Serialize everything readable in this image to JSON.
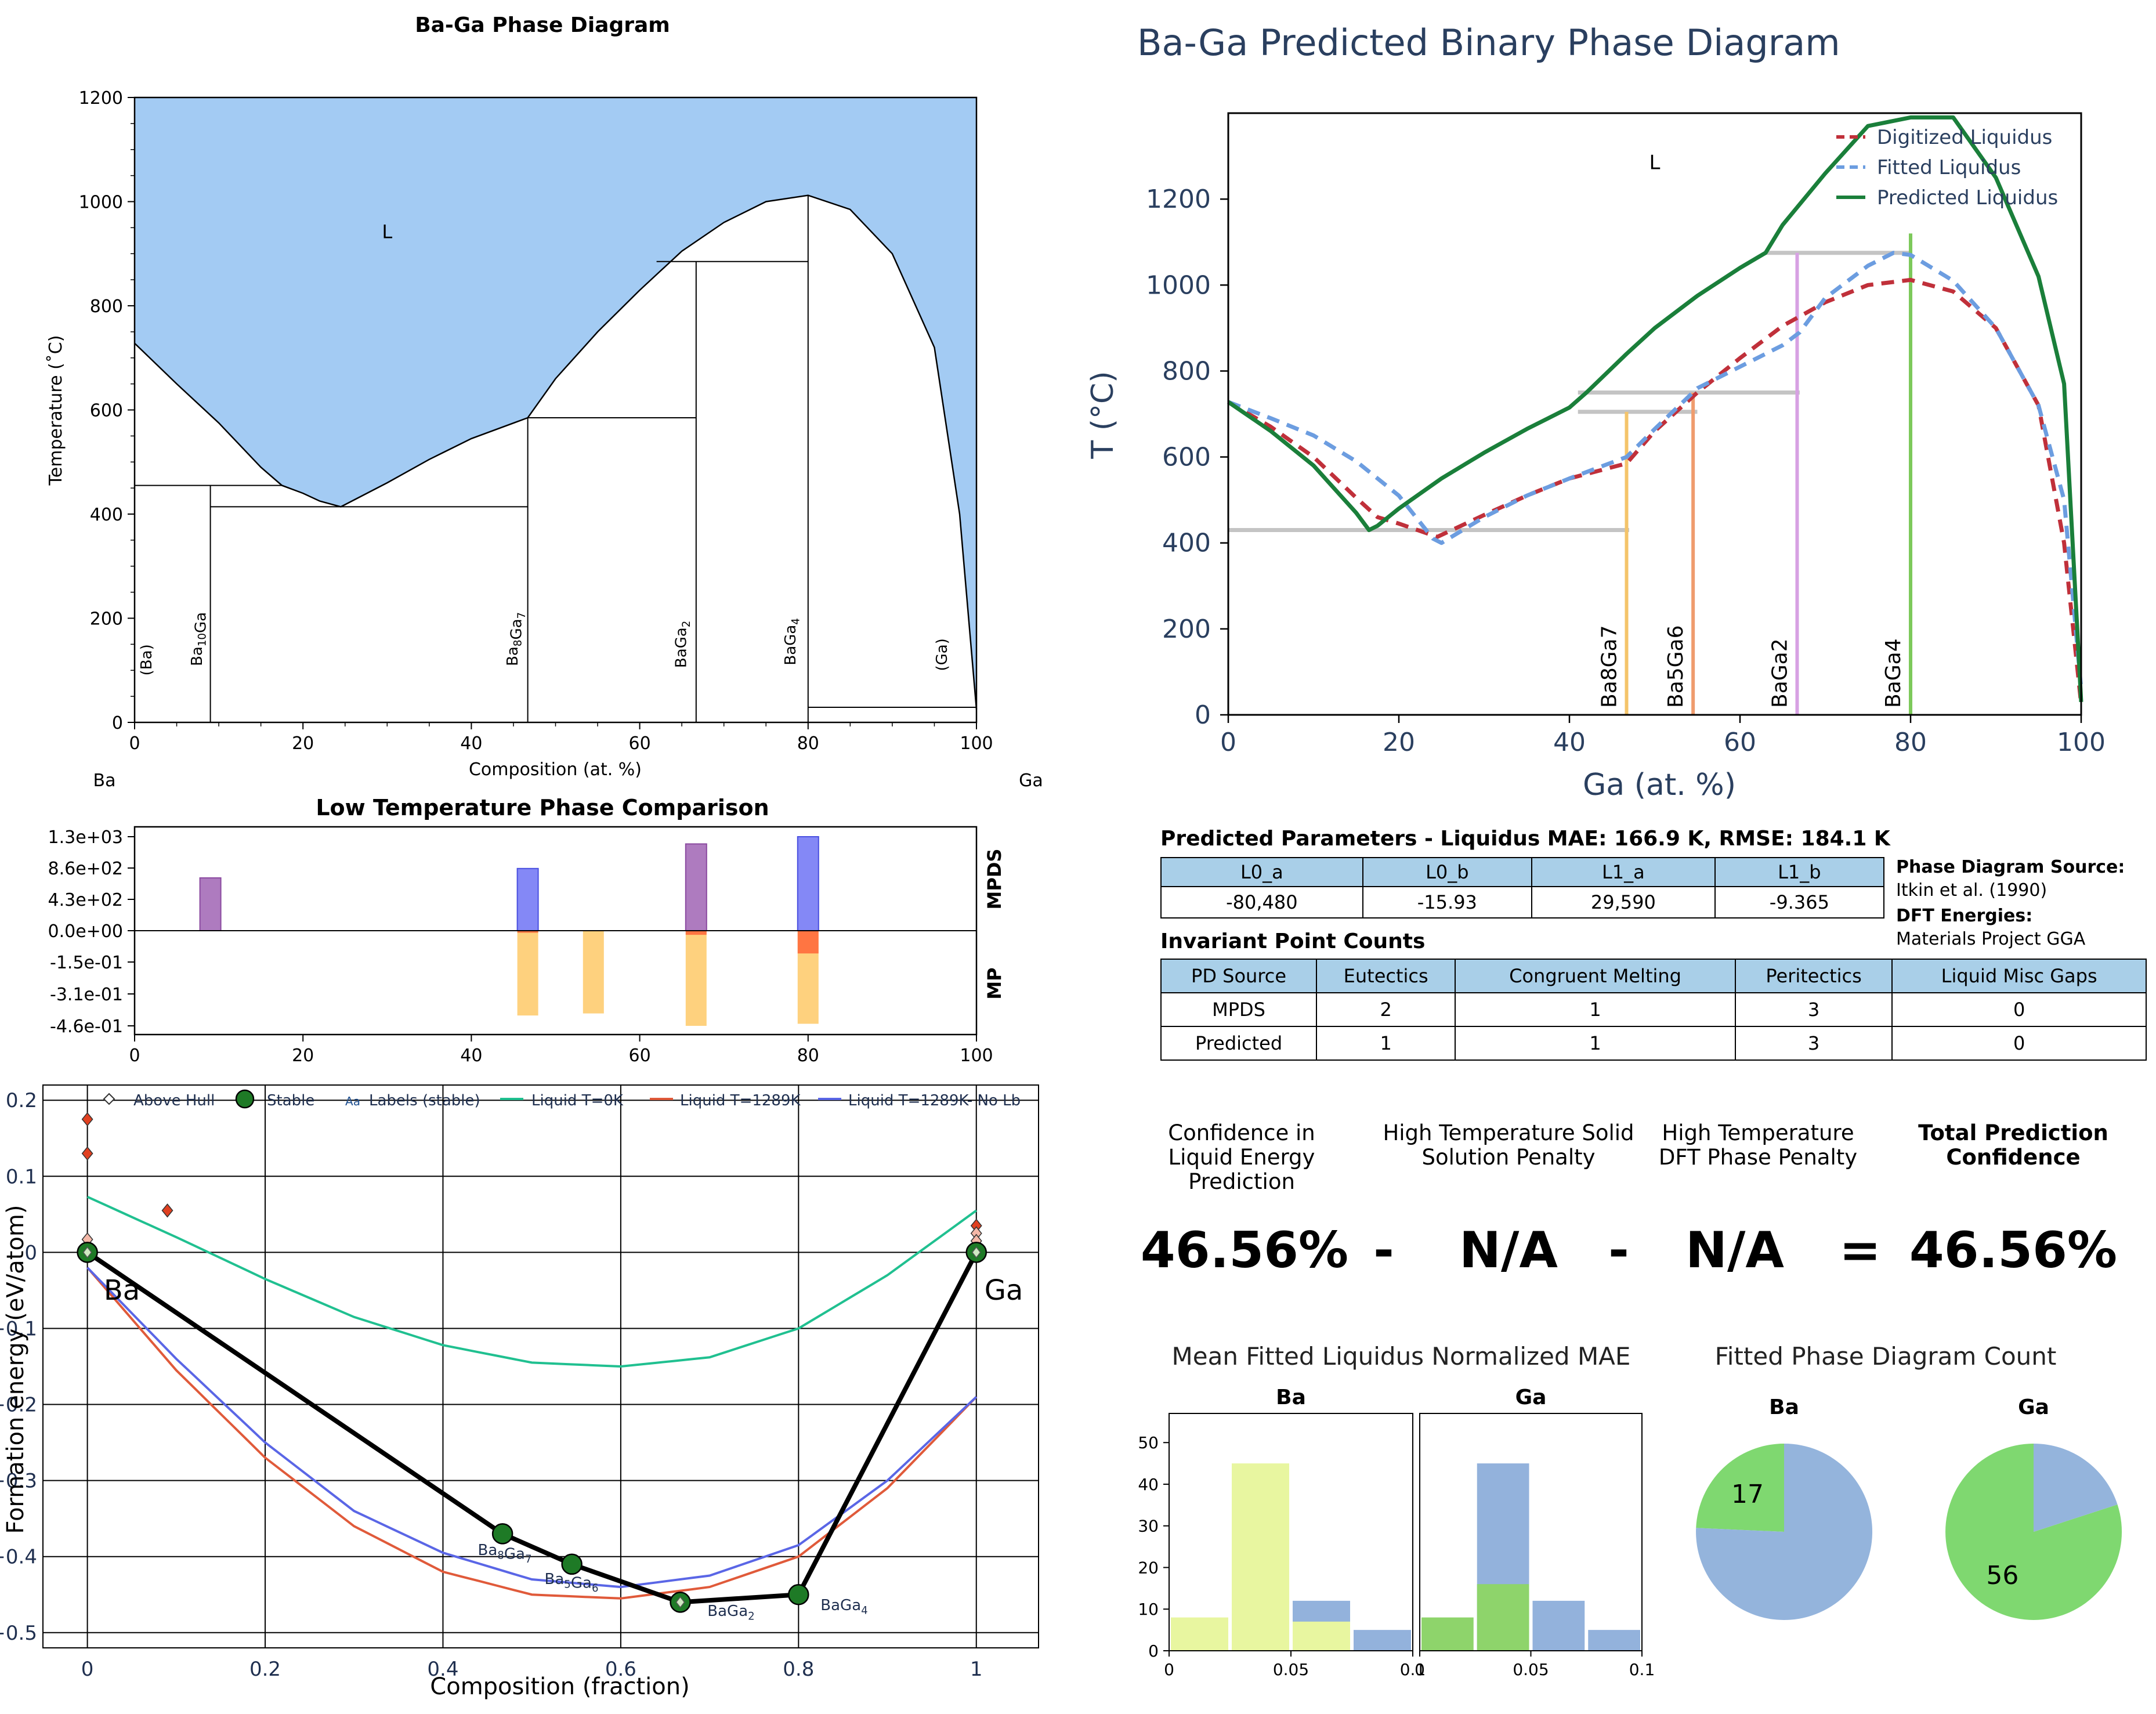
{
  "colors": {
    "liquid": "#a3cbf3",
    "mpds_purple": "#a064b4",
    "mpds_blue": "#6e73f5",
    "mp_orange": "#ff6a3c",
    "mp_yellow": "#fec55e",
    "dig": "#c0303a",
    "fit": "#6c9de0",
    "pred": "#1a7f3a",
    "hull": "#000000",
    "liq0": "#20c090",
    "liq1": "#e05a3a",
    "liq2": "#5a66e6",
    "hist_yellow": "#e8f6a0",
    "hist_blue": "#93b2dc",
    "hist_green": "#8ed46b",
    "pie_green": "#7fd870",
    "pie_blue": "#94b4dc"
  },
  "pd1": {
    "title": "Ba-Ga Phase Diagram",
    "xlabel": "Composition (at. %)",
    "ylabel": "Temperature (˚C)",
    "x_ticks": [
      "0",
      "20",
      "40",
      "60",
      "80",
      "100"
    ],
    "y_ticks": [
      "0",
      "200",
      "400",
      "600",
      "800",
      "1000",
      "1200"
    ],
    "left_element": "Ba",
    "right_element": "Ga",
    "liquid_label": "L",
    "phase_labels": [
      "(Ba)",
      "Ba10Ga",
      "Ba8Ga7",
      "BaGa2",
      "BaGa4",
      "(Ga)"
    ]
  },
  "pd2": {
    "title": "Ba-Ga Predicted Binary Phase Diagram",
    "xlabel": "Ga (at. %)",
    "ylabel": "T (°C)",
    "x_ticks": [
      "0",
      "20",
      "40",
      "60",
      "80",
      "100"
    ],
    "y_ticks": [
      "0",
      "200",
      "400",
      "600",
      "800",
      "1000",
      "1200"
    ],
    "liquid_label": "L",
    "legend": [
      "Digitized Liquidus",
      "Fitted Liquidus",
      "Predicted Liquidus"
    ],
    "compound_labels": [
      "Ba8Ga7",
      "Ba5Ga6",
      "BaGa2",
      "BaGa4"
    ]
  },
  "ltc": {
    "title": "Low Temperature Phase Comparison",
    "y_ticks": [
      "1.3e+03",
      "8.6e+02",
      "4.3e+02",
      "0.0e+00",
      "-1.5e-01",
      "-3.1e-01",
      "-4.6e-01"
    ],
    "x_ticks": [
      "0",
      "20",
      "40",
      "60",
      "80",
      "100"
    ],
    "right_top": "MPDS",
    "right_bottom": "MP"
  },
  "hull": {
    "xlabel": "Composition (fraction)",
    "ylabel": "Formation energy (eV/atom)",
    "x_ticks": [
      "0",
      "0.2",
      "0.4",
      "0.6",
      "0.8",
      "1"
    ],
    "y_ticks": [
      "0.2",
      "0.1",
      "0",
      "−0.1",
      "−0.2",
      "−0.3",
      "−0.4",
      "−0.5"
    ],
    "legend": [
      "Above Hull",
      "Stable",
      "Labels (stable)",
      "Liquid T=0K",
      "Liquid T=1289K",
      "Liquid T=1289K- No Lb"
    ],
    "legend_aa": "Aa",
    "end_labels": [
      "Ba",
      "Ga"
    ],
    "compound_labels": [
      "Ba8Ga7",
      "Ba5Ga6",
      "BaGa2",
      "BaGa4"
    ]
  },
  "params": {
    "title": "Predicted Parameters - Liquidus MAE: 166.9 K, RMSE: 184.1 K",
    "headers": [
      "L0_a",
      "L0_b",
      "L1_a",
      "L1_b"
    ],
    "values": [
      "-80,480",
      "-15.93",
      "29,590",
      "-9.365"
    ],
    "source_label": "Phase Diagram Source:",
    "source_value": "Itkin et al. (1990)",
    "dft_label": "DFT Energies:",
    "dft_value": "Materials Project GGA"
  },
  "invariant": {
    "title": "Invariant Point Counts",
    "headers": [
      "PD Source",
      "Eutectics",
      "Congruent Melting",
      "Peritectics",
      "Liquid Misc Gaps"
    ],
    "rows": [
      [
        "MPDS",
        "2",
        "1",
        "3",
        "0"
      ],
      [
        "Predicted",
        "1",
        "1",
        "3",
        "0"
      ]
    ]
  },
  "confidence": {
    "labels": [
      "Confidence in Liquid Energy Prediction",
      "High Temperature Solid Solution Penalty",
      "High Temperature DFT Phase Penalty",
      "Total Prediction Confidence"
    ],
    "values": [
      "46.56%",
      "N/A",
      "N/A",
      "46.56%"
    ],
    "ops": [
      "-",
      "-",
      "="
    ]
  },
  "hist": {
    "title": "Mean Fitted Liquidus Normalized MAE",
    "panels": [
      "Ba",
      "Ga"
    ],
    "x_ticks": [
      "0",
      "0.05",
      "0.1"
    ],
    "y_ticks": [
      "0",
      "10",
      "20",
      "30",
      "40",
      "50"
    ]
  },
  "pie": {
    "title": "Fitted Phase Diagram Count",
    "panels": [
      "Ba",
      "Ga"
    ],
    "values": [
      "17",
      "56"
    ]
  },
  "chart_data": [
    {
      "type": "area",
      "title": "Ba-Ga Phase Diagram",
      "xlabel": "Composition (at. %)",
      "ylabel": "Temperature (˚C)",
      "xlim": [
        0,
        100
      ],
      "ylim": [
        0,
        1200
      ],
      "liquidus": {
        "x": [
          0,
          5,
          10,
          15,
          17.5,
          20,
          22,
          24.5,
          30,
          35,
          40,
          46.7,
          50,
          55,
          60,
          65,
          70,
          75,
          80,
          85,
          90,
          95,
          98,
          100
        ],
        "y": [
          728,
          650,
          575,
          490,
          455,
          440,
          425,
          414,
          460,
          505,
          545,
          585,
          660,
          750,
          830,
          905,
          960,
          1000,
          1012,
          985,
          900,
          720,
          400,
          25
        ]
      },
      "horizontals": [
        {
          "x": [
            0,
            17.5
          ],
          "y": 455
        },
        {
          "x": [
            9,
            46.7
          ],
          "y": 414
        },
        {
          "x": [
            46.7,
            66.7
          ],
          "y": 585
        },
        {
          "x": [
            62,
            80
          ],
          "y": 885
        },
        {
          "x": [
            80,
            100
          ],
          "y": 29
        }
      ],
      "verticals": [
        {
          "x": 9,
          "y": [
            0,
            455
          ]
        },
        {
          "x": 46.7,
          "y": [
            0,
            585
          ]
        },
        {
          "x": 66.7,
          "y": [
            0,
            885
          ]
        },
        {
          "x": 80,
          "y": [
            0,
            1012
          ]
        }
      ],
      "labels": {
        "L": [
          30,
          930
        ],
        "(Ba)": [
          2,
          120
        ],
        "Ba10Ga": [
          8,
          160
        ],
        "Ba8Ga7": [
          45.5,
          160
        ],
        "BaGa2": [
          65.5,
          150
        ],
        "BaGa4": [
          78.5,
          155
        ],
        "(Ga)": [
          96.5,
          130
        ]
      }
    },
    {
      "type": "line",
      "title": "Ba-Ga Predicted Binary Phase Diagram",
      "xlabel": "Ga (at. %)",
      "ylabel": "T (°C)",
      "xlim": [
        0,
        100
      ],
      "ylim": [
        0,
        1400
      ],
      "series": [
        {
          "name": "Digitized Liquidus",
          "x": [
            0,
            5,
            10,
            15,
            17.5,
            20,
            24.5,
            30,
            35,
            40,
            46.7,
            50,
            55,
            60,
            65,
            70,
            75,
            80,
            85,
            90,
            95,
            98,
            100
          ],
          "y": [
            728,
            670,
            600,
            505,
            460,
            445,
            414,
            465,
            510,
            550,
            585,
            660,
            750,
            830,
            905,
            960,
            1000,
            1012,
            985,
            900,
            720,
            400,
            25
          ]
        },
        {
          "name": "Fitted Liquidus",
          "x": [
            0,
            5,
            10,
            15,
            20,
            24,
            25,
            30,
            35,
            40,
            46.7,
            50,
            55,
            60,
            65,
            67,
            70,
            75,
            78,
            80,
            85,
            90,
            95,
            98,
            100
          ],
          "y": [
            728,
            690,
            650,
            590,
            510,
            410,
            400,
            460,
            510,
            550,
            600,
            665,
            760,
            810,
            860,
            890,
            970,
            1045,
            1075,
            1070,
            1010,
            900,
            720,
            500,
            60
          ]
        },
        {
          "name": "Predicted Liquidus",
          "x": [
            0,
            5,
            10,
            15,
            16.5,
            17.5,
            20,
            25,
            30,
            35,
            40,
            42,
            46.7,
            50,
            55,
            60,
            63,
            65,
            70,
            75,
            80,
            85,
            90,
            95,
            98,
            100
          ],
          "y": [
            728,
            660,
            580,
            470,
            430,
            440,
            480,
            550,
            610,
            665,
            715,
            750,
            840,
            900,
            975,
            1040,
            1075,
            1140,
            1260,
            1370,
            1440,
            1400,
            1250,
            1020,
            770,
            30
          ]
        }
      ],
      "horizontals": [
        {
          "x": [
            0,
            47
          ],
          "y": 430
        },
        {
          "x": [
            41,
            55
          ],
          "y": 705
        },
        {
          "x": [
            41,
            67
          ],
          "y": 750
        },
        {
          "x": [
            63,
            80
          ],
          "y": 1075
        }
      ],
      "compounds": [
        {
          "name": "Ba8Ga7",
          "x": 46.7,
          "color": "#f4c46a"
        },
        {
          "name": "Ba5Ga6",
          "x": 54.5,
          "color": "#ef9c6e"
        },
        {
          "name": "BaGa2",
          "x": 66.7,
          "color": "#d7a1e3"
        },
        {
          "name": "BaGa4",
          "x": 80,
          "color": "#7dc95b"
        }
      ]
    },
    {
      "type": "bar",
      "title": "Low Temperature Phase Comparison",
      "xlim": [
        0,
        100
      ],
      "mpds": [
        {
          "x": 9,
          "top": 730,
          "color": "purple"
        },
        {
          "x": 46.7,
          "top": 860,
          "color": "blue"
        },
        {
          "x": 66.7,
          "top": 1200,
          "color": "purple"
        },
        {
          "x": 80,
          "top": 1300,
          "color": "blue"
        }
      ],
      "mp": [
        {
          "x": 46.7,
          "orange": -0.01,
          "yellow": -0.41
        },
        {
          "x": 54.5,
          "orange": 0,
          "yellow": -0.4
        },
        {
          "x": 66.7,
          "orange": -0.02,
          "yellow": -0.46
        },
        {
          "x": 80,
          "orange": -0.11,
          "yellow": -0.45
        }
      ]
    },
    {
      "type": "scatter",
      "title": "",
      "xlabel": "Composition (fraction)",
      "ylabel": "Formation energy (eV/atom)",
      "xlim": [
        -0.05,
        1.07
      ],
      "ylim": [
        -0.52,
        0.22
      ],
      "hull": {
        "x": [
          0,
          0.467,
          0.545,
          0.667,
          0.8,
          1
        ],
        "y": [
          0,
          -0.37,
          -0.41,
          -0.46,
          -0.45,
          0
        ]
      },
      "above_hull": [
        {
          "x": 0,
          "y": 0.175
        },
        {
          "x": 0,
          "y": 0.13
        },
        {
          "x": 0.09,
          "y": 0.055
        },
        {
          "x": 0,
          "y": 0.017
        },
        {
          "x": 1,
          "y": 0.035
        },
        {
          "x": 1,
          "y": 0.025
        },
        {
          "x": 1,
          "y": 0.015
        }
      ],
      "liquid_0K": {
        "x": [
          0,
          0.1,
          0.2,
          0.3,
          0.4,
          0.5,
          0.6,
          0.7,
          0.8,
          0.9,
          1
        ],
        "y": [
          0.073,
          0.02,
          -0.035,
          -0.085,
          -0.122,
          -0.145,
          -0.15,
          -0.138,
          -0.1,
          -0.03,
          0.055
        ]
      },
      "liquid_1289K": {
        "x": [
          0,
          0.1,
          0.2,
          0.3,
          0.4,
          0.5,
          0.6,
          0.7,
          0.8,
          0.9,
          1
        ],
        "y": [
          -0.02,
          -0.155,
          -0.27,
          -0.36,
          -0.42,
          -0.45,
          -0.455,
          -0.44,
          -0.4,
          -0.31,
          -0.19
        ]
      },
      "liquid_1289K_noLb": {
        "x": [
          0,
          0.1,
          0.2,
          0.3,
          0.4,
          0.5,
          0.6,
          0.7,
          0.8,
          0.9,
          1
        ],
        "y": [
          -0.02,
          -0.14,
          -0.25,
          -0.34,
          -0.395,
          -0.43,
          -0.44,
          -0.425,
          -0.385,
          -0.3,
          -0.19
        ]
      }
    },
    {
      "type": "bar",
      "title": "Mean Fitted Liquidus Normalized MAE",
      "panels": [
        {
          "name": "Ba",
          "bins": [
            [
              0,
              0.025,
              8,
              "yellow"
            ],
            [
              0.025,
              0.05,
              45,
              "yellow"
            ],
            [
              0.05,
              0.075,
              12,
              "blue"
            ],
            [
              0.05,
              0.075,
              7,
              "yellow"
            ],
            [
              0.075,
              0.1,
              5,
              "blue"
            ]
          ]
        },
        {
          "name": "Ga",
          "bins": [
            [
              0,
              0.025,
              8,
              "green"
            ],
            [
              0.025,
              0.05,
              45,
              "blue"
            ],
            [
              0.025,
              0.05,
              16,
              "green"
            ],
            [
              0.05,
              0.075,
              12,
              "blue"
            ],
            [
              0.075,
              0.1,
              5,
              "blue"
            ]
          ]
        }
      ]
    },
    {
      "type": "pie",
      "title": "Fitted Phase Diagram Count",
      "panels": [
        {
          "name": "Ba",
          "green": 17,
          "blue": 53
        },
        {
          "name": "Ga",
          "green": 56,
          "blue": 14
        }
      ]
    }
  ]
}
